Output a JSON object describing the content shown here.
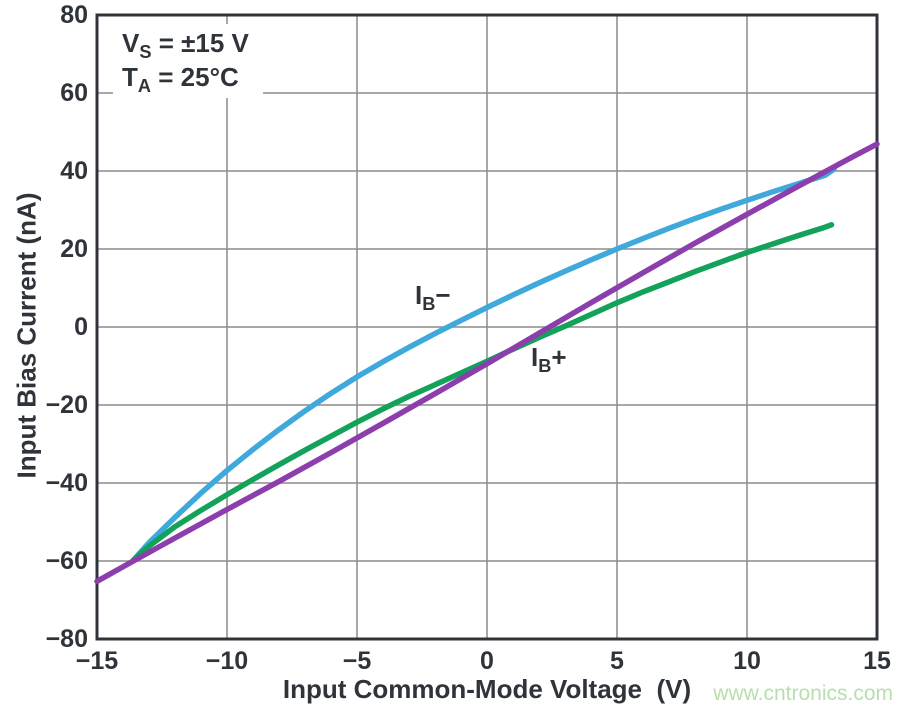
{
  "watermark": {
    "text": "www.cntronics.com",
    "color": "#b7dfae"
  },
  "chart_data": {
    "type": "line",
    "title": "",
    "xlabel": "Input Common-Mode Voltage  (V)",
    "ylabel": "Input Bias Current (nA)",
    "xlim": [
      -15,
      15
    ],
    "ylim": [
      -80,
      80
    ],
    "grid": true,
    "legend_position": "none",
    "xticks": {
      "values": [
        -15,
        -10,
        -5,
        0,
        5,
        10,
        15
      ],
      "labels": [
        "−15",
        "−10",
        "−5",
        "0",
        "5",
        "10",
        "15"
      ]
    },
    "yticks": {
      "values": [
        -80,
        -60,
        -40,
        -20,
        0,
        20,
        40,
        60,
        80
      ],
      "labels": [
        "−80",
        "−60",
        "−40",
        "−20",
        "0",
        "20",
        "40",
        "60",
        "80"
      ]
    },
    "annotation": {
      "line1": {
        "base": "V",
        "sub": "S",
        "rest": " = ±15 V"
      },
      "line2": {
        "base": "T",
        "sub": "A",
        "rest": " = 25°C"
      }
    },
    "curve_labels": [
      {
        "base": "I",
        "sub": "B",
        "sign": "−"
      },
      {
        "base": "I",
        "sub": "B",
        "sign": "+"
      }
    ],
    "colors": {
      "axis": "#2f333a",
      "grid": "#8c8c8c",
      "text": "#2f333a"
    },
    "series": [
      {
        "name": "IB−",
        "color": "#3fa9dc",
        "points": [
          [
            -13.6,
            -59.8
          ],
          [
            -13,
            -55.3
          ],
          [
            -12,
            -48.8
          ],
          [
            -11,
            -42.6
          ],
          [
            -10,
            -36.8
          ],
          [
            -9,
            -31.4
          ],
          [
            -8,
            -26.3
          ],
          [
            -7,
            -21.5
          ],
          [
            -6,
            -17
          ],
          [
            -5,
            -12.8
          ],
          [
            -4,
            -8.9
          ],
          [
            -3,
            -5.2
          ],
          [
            -2,
            -1.7
          ],
          [
            -1,
            1.7
          ],
          [
            0,
            5
          ],
          [
            1,
            8.2
          ],
          [
            2,
            11.3
          ],
          [
            3,
            14.3
          ],
          [
            4,
            17.2
          ],
          [
            5,
            20
          ],
          [
            6,
            22.7
          ],
          [
            7,
            25.3
          ],
          [
            8,
            27.8
          ],
          [
            9,
            30.2
          ],
          [
            10,
            32.5
          ],
          [
            11,
            34.7
          ],
          [
            12,
            36.8
          ],
          [
            13,
            38.9
          ],
          [
            13.35,
            40.5
          ]
        ]
      },
      {
        "name": "IB+",
        "color": "#12a25a",
        "points": [
          [
            -13.6,
            -59.8
          ],
          [
            -13,
            -56.2
          ],
          [
            -12,
            -51.2
          ],
          [
            -11,
            -47
          ],
          [
            -10,
            -43
          ],
          [
            -9,
            -39.1
          ],
          [
            -8,
            -35.3
          ],
          [
            -7,
            -31.6
          ],
          [
            -6,
            -28
          ],
          [
            -5,
            -24.4
          ],
          [
            -4,
            -21
          ],
          [
            -3,
            -17.8
          ],
          [
            -2,
            -14.8
          ],
          [
            -1,
            -11.8
          ],
          [
            0,
            -8.8
          ],
          [
            1,
            -5.7
          ],
          [
            2,
            -2.7
          ],
          [
            3,
            0.2
          ],
          [
            4,
            3.2
          ],
          [
            5,
            6.2
          ],
          [
            6,
            9
          ],
          [
            7,
            11.6
          ],
          [
            8,
            14.2
          ],
          [
            9,
            16.7
          ],
          [
            10,
            19.1
          ],
          [
            11,
            21.3
          ],
          [
            12,
            23.5
          ],
          [
            13,
            25.6
          ],
          [
            13.25,
            26.2
          ]
        ]
      },
      {
        "name": "unlabeled",
        "color": "#8b3eac",
        "points": [
          [
            -15,
            -65.2
          ],
          [
            -13.6,
            -60
          ],
          [
            -12,
            -54.1
          ],
          [
            -10,
            -46.8
          ],
          [
            -8,
            -39.6
          ],
          [
            -6,
            -32.2
          ],
          [
            -4,
            -24.7
          ],
          [
            -2,
            -17.1
          ],
          [
            0,
            -9.4
          ],
          [
            2,
            -1.6
          ],
          [
            4,
            6.2
          ],
          [
            6,
            13.9
          ],
          [
            8,
            21.5
          ],
          [
            10,
            28.9
          ],
          [
            12,
            36.2
          ],
          [
            14,
            43.4
          ],
          [
            15,
            46.9
          ]
        ]
      }
    ]
  }
}
